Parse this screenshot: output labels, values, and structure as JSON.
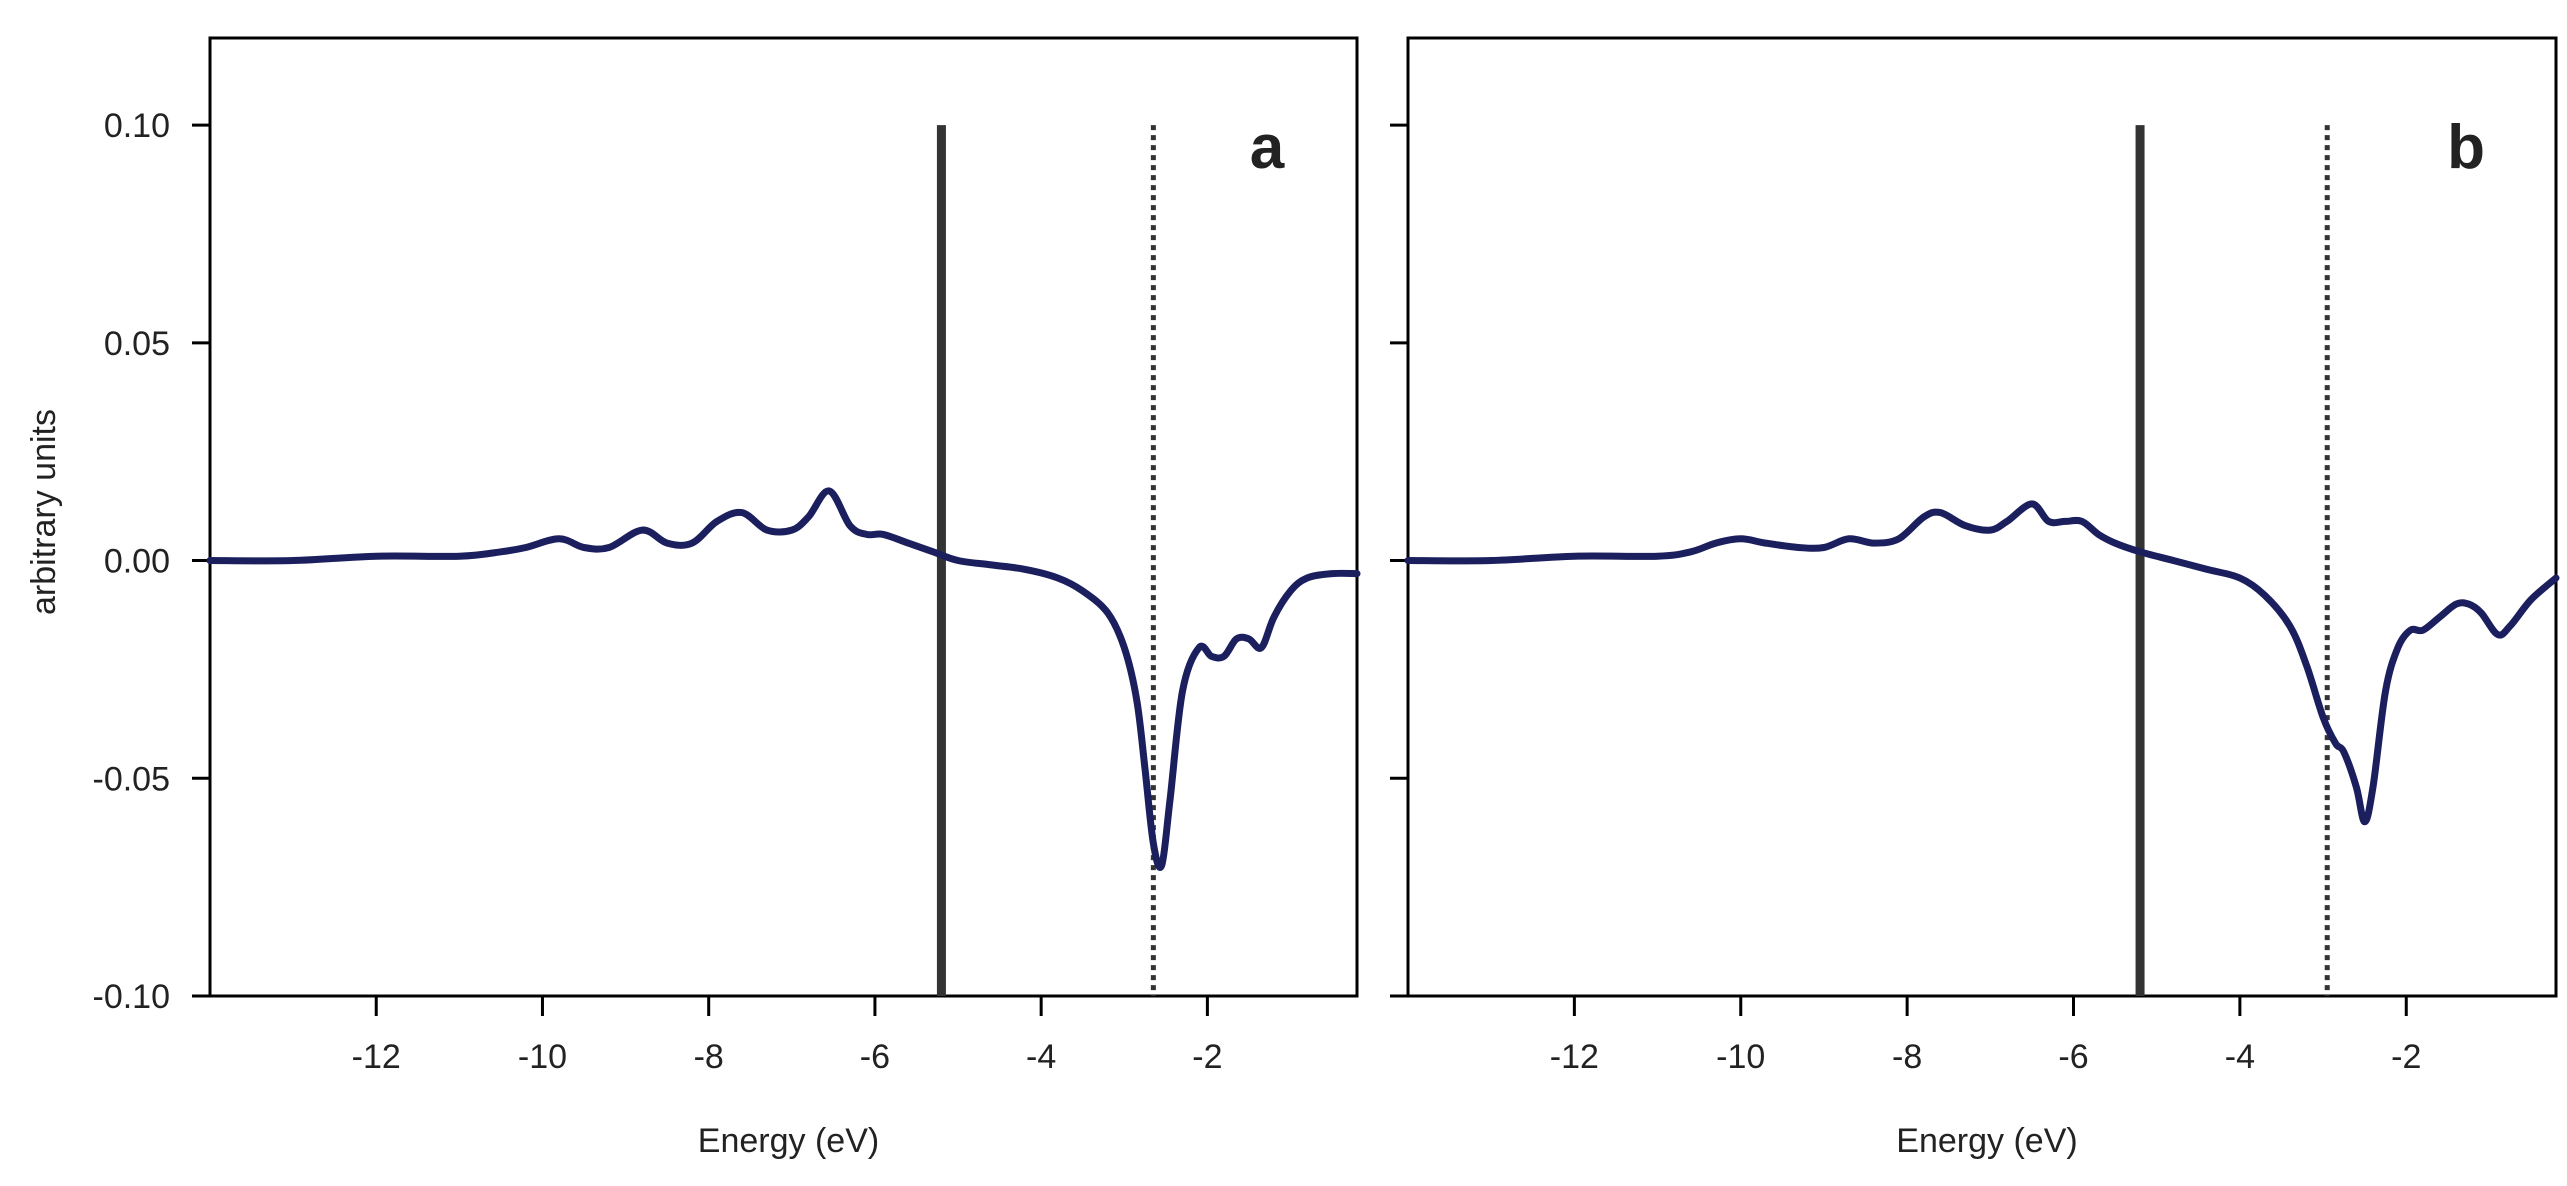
{
  "colors": {
    "curve": "#1b1f5e",
    "marker": "#333333",
    "axis": "#000000",
    "text": "#222222"
  },
  "chart_data": [
    {
      "type": "line",
      "panel_label": "a",
      "xlabel": "Energy (eV)",
      "ylabel": "arbitrary units",
      "xlim": [
        -14,
        -0.2
      ],
      "ylim": [
        -0.1,
        0.12
      ],
      "xticks": [
        -12,
        -10,
        -8,
        -6,
        -4,
        -2
      ],
      "xtick_labels": [
        "-12",
        "-10",
        "-8",
        "-6",
        "-4",
        "-2"
      ],
      "yticks": [
        -0.1,
        -0.05,
        0.0,
        0.05,
        0.1
      ],
      "ytick_labels": [
        "-0.10",
        "-0.05",
        "0.00",
        "0.05",
        "0.10"
      ],
      "grid": false,
      "vlines": [
        {
          "x": -5.2,
          "style": "solid",
          "ymax": 0.1
        },
        {
          "x": -2.65,
          "style": "dotted",
          "ymax": 0.1
        }
      ],
      "series": [
        {
          "x": [
            -14,
            -13,
            -12,
            -11,
            -10.5,
            -10.2,
            -9.8,
            -9.5,
            -9.2,
            -8.8,
            -8.5,
            -8.2,
            -7.9,
            -7.6,
            -7.3,
            -7.0,
            -6.8,
            -6.55,
            -6.3,
            -6.1,
            -5.9,
            -5.6,
            -5.3,
            -5.0,
            -4.6,
            -4.2,
            -3.8,
            -3.5,
            -3.2,
            -3.0,
            -2.85,
            -2.75,
            -2.65,
            -2.55,
            -2.45,
            -2.3,
            -2.1,
            -1.95,
            -1.8,
            -1.65,
            -1.5,
            -1.35,
            -1.2,
            -1.0,
            -0.8,
            -0.5,
            -0.2
          ],
          "y": [
            0.0,
            0.0,
            0.001,
            0.001,
            0.002,
            0.003,
            0.005,
            0.003,
            0.003,
            0.007,
            0.004,
            0.004,
            0.009,
            0.011,
            0.007,
            0.007,
            0.01,
            0.016,
            0.008,
            0.006,
            0.006,
            0.004,
            0.002,
            0.0,
            -0.001,
            -0.002,
            -0.004,
            -0.007,
            -0.012,
            -0.02,
            -0.032,
            -0.048,
            -0.065,
            -0.07,
            -0.055,
            -0.03,
            -0.02,
            -0.022,
            -0.022,
            -0.018,
            -0.018,
            -0.02,
            -0.013,
            -0.007,
            -0.004,
            -0.003,
            -0.003
          ]
        }
      ]
    },
    {
      "type": "line",
      "panel_label": "b",
      "xlabel": "Energy (eV)",
      "ylabel": "",
      "xlim": [
        -14,
        -0.2
      ],
      "ylim": [
        -0.1,
        0.12
      ],
      "xticks": [
        -12,
        -10,
        -8,
        -6,
        -4,
        -2
      ],
      "xtick_labels": [
        "-12",
        "-10",
        "-8",
        "-6",
        "-4",
        "-2"
      ],
      "yticks": [
        -0.1,
        -0.05,
        0.0,
        0.05,
        0.1
      ],
      "ytick_labels": [
        "",
        "",
        "",
        "",
        ""
      ],
      "grid": false,
      "vlines": [
        {
          "x": -5.2,
          "style": "solid",
          "ymax": 0.1
        },
        {
          "x": -2.95,
          "style": "dotted",
          "ymax": 0.1
        }
      ],
      "series": [
        {
          "x": [
            -14,
            -13,
            -12,
            -11,
            -10.6,
            -10.3,
            -10.0,
            -9.7,
            -9.3,
            -9.0,
            -8.7,
            -8.4,
            -8.1,
            -7.8,
            -7.6,
            -7.3,
            -7.0,
            -6.8,
            -6.5,
            -6.3,
            -6.1,
            -5.9,
            -5.7,
            -5.5,
            -5.2,
            -4.8,
            -4.4,
            -4.0,
            -3.7,
            -3.4,
            -3.2,
            -3.0,
            -2.85,
            -2.75,
            -2.6,
            -2.5,
            -2.4,
            -2.25,
            -2.1,
            -1.95,
            -1.8,
            -1.6,
            -1.4,
            -1.25,
            -1.1,
            -0.9,
            -0.75,
            -0.5,
            -0.2
          ],
          "y": [
            0.0,
            0.0,
            0.001,
            0.001,
            0.002,
            0.004,
            0.005,
            0.004,
            0.003,
            0.003,
            0.005,
            0.004,
            0.005,
            0.01,
            0.011,
            0.008,
            0.007,
            0.009,
            0.013,
            0.009,
            0.009,
            0.009,
            0.006,
            0.004,
            0.002,
            0.0,
            -0.002,
            -0.004,
            -0.008,
            -0.015,
            -0.024,
            -0.036,
            -0.042,
            -0.044,
            -0.052,
            -0.06,
            -0.052,
            -0.03,
            -0.02,
            -0.016,
            -0.016,
            -0.013,
            -0.01,
            -0.01,
            -0.012,
            -0.017,
            -0.015,
            -0.009,
            -0.004
          ]
        }
      ]
    }
  ]
}
